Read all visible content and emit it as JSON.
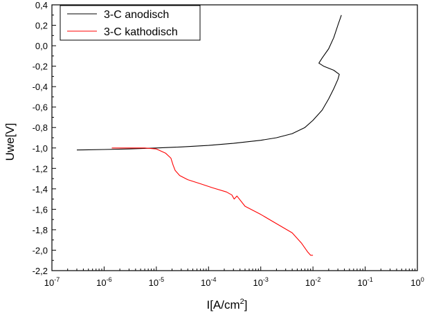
{
  "chart_data": {
    "type": "line",
    "title": "",
    "xlabel": "I[A/cm",
    "xlabel_sup": "2",
    "xlabel_end": "]",
    "ylabel": "Uwe[V]",
    "x_scale": "log",
    "xlim": [
      1e-07,
      1
    ],
    "ylim": [
      -2.2,
      0.4
    ],
    "grid": false,
    "legend_position": "top-left",
    "x_ticks": [
      {
        "value": 1e-07,
        "base": "10",
        "exp": "-7"
      },
      {
        "value": 1e-06,
        "base": "10",
        "exp": "-6"
      },
      {
        "value": 1e-05,
        "base": "10",
        "exp": "-5"
      },
      {
        "value": 0.0001,
        "base": "10",
        "exp": "-4"
      },
      {
        "value": 0.001,
        "base": "10",
        "exp": "-3"
      },
      {
        "value": 0.01,
        "base": "10",
        "exp": "-2"
      },
      {
        "value": 0.1,
        "base": "10",
        "exp": "-1"
      },
      {
        "value": 1,
        "base": "10",
        "exp": "0"
      }
    ],
    "y_ticks": [
      {
        "value": 0.4,
        "label": "0,4"
      },
      {
        "value": 0.2,
        "label": "0,2"
      },
      {
        "value": 0.0,
        "label": "0,0"
      },
      {
        "value": -0.2,
        "label": "-0,2"
      },
      {
        "value": -0.4,
        "label": "-0,4"
      },
      {
        "value": -0.6,
        "label": "-0,6"
      },
      {
        "value": -0.8,
        "label": "-0,8"
      },
      {
        "value": -1.0,
        "label": "-1,0"
      },
      {
        "value": -1.2,
        "label": "-1,2"
      },
      {
        "value": -1.4,
        "label": "-1,4"
      },
      {
        "value": -1.6,
        "label": "-1,6"
      },
      {
        "value": -1.8,
        "label": "-1,8"
      },
      {
        "value": -2.0,
        "label": "-2,0"
      },
      {
        "value": -2.2,
        "label": "-2,2"
      }
    ],
    "series": [
      {
        "name": "3-C anodisch",
        "color": "#000000",
        "x": [
          3e-07,
          1e-06,
          3e-06,
          1e-05,
          3e-05,
          0.0001,
          0.0003,
          0.001,
          0.002,
          0.004,
          0.007,
          0.01,
          0.015,
          0.02,
          0.025,
          0.03,
          0.032,
          0.025,
          0.016,
          0.013,
          0.015,
          0.02,
          0.025,
          0.03,
          0.035
        ],
        "y": [
          -1.02,
          -1.015,
          -1.01,
          -1.0,
          -0.99,
          -0.975,
          -0.955,
          -0.925,
          -0.9,
          -0.86,
          -0.8,
          -0.73,
          -0.63,
          -0.52,
          -0.42,
          -0.33,
          -0.28,
          -0.24,
          -0.2,
          -0.17,
          -0.12,
          -0.03,
          0.08,
          0.2,
          0.3
        ]
      },
      {
        "name": "3-C kathodisch",
        "color": "#ff0000",
        "x": [
          1.4e-06,
          3e-06,
          6e-06,
          1e-05,
          1.5e-05,
          1.9e-05,
          2.1e-05,
          2.3e-05,
          2.8e-05,
          4e-05,
          7e-05,
          0.00012,
          0.00022,
          0.00028,
          0.00031,
          0.00035,
          0.0005,
          0.001,
          0.002,
          0.004,
          0.006,
          0.008,
          0.009,
          0.01
        ],
        "y": [
          -1.0,
          -1.0,
          -1.0,
          -1.01,
          -1.05,
          -1.1,
          -1.17,
          -1.22,
          -1.27,
          -1.31,
          -1.35,
          -1.39,
          -1.43,
          -1.46,
          -1.5,
          -1.47,
          -1.57,
          -1.65,
          -1.74,
          -1.83,
          -1.93,
          -2.02,
          -2.05,
          -2.05
        ]
      }
    ]
  }
}
